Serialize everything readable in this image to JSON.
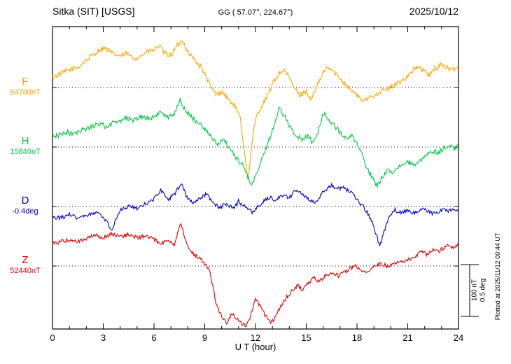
{
  "chart_data": {
    "type": "line",
    "title": "Sitka (SIT)  [USGS]",
    "subtitle": "GG ( 57.07°, 224.67°)",
    "date": "2025/10/12",
    "plotted_at": "Plotted at 2025/11/12 00:44 UT",
    "xlabel": "U T (hour)",
    "x_range": [
      0,
      24
    ],
    "x_ticks": [
      0,
      3,
      6,
      9,
      12,
      15,
      18,
      21,
      24
    ],
    "x_minor_tick_every": 1,
    "grid": "dotted horizontal baseline per series",
    "legend_position": "left margin",
    "scale_bar": {
      "nT_label": "100 nT",
      "deg_label": "0.5 deg",
      "nT_per_division": 100,
      "deg_per_division": 0.5
    },
    "series": [
      {
        "name": "F",
        "baseline_label": "54780nT",
        "baseline_value": 54780,
        "units": "nT",
        "color": "#FFA500",
        "noise_amplitude": 5,
        "points": [
          [
            0,
            20
          ],
          [
            0.5,
            27
          ],
          [
            1,
            34
          ],
          [
            1.5,
            39
          ],
          [
            2,
            53
          ],
          [
            2.5,
            66
          ],
          [
            3,
            77
          ],
          [
            3.3,
            72
          ],
          [
            3.6,
            64
          ],
          [
            4,
            61
          ],
          [
            4.4,
            66
          ],
          [
            4.8,
            55
          ],
          [
            5.2,
            61
          ],
          [
            5.6,
            69
          ],
          [
            6,
            72
          ],
          [
            6.3,
            81
          ],
          [
            6.6,
            66
          ],
          [
            7,
            62
          ],
          [
            7.4,
            82
          ],
          [
            7.7,
            91
          ],
          [
            8,
            69
          ],
          [
            8.4,
            53
          ],
          [
            8.8,
            39
          ],
          [
            9.1,
            18
          ],
          [
            9.4,
            -1
          ],
          [
            9.7,
            -15
          ],
          [
            10,
            -7
          ],
          [
            10.4,
            -23
          ],
          [
            10.8,
            -36
          ],
          [
            11.1,
            -61
          ],
          [
            11.4,
            -135
          ],
          [
            11.55,
            -180
          ],
          [
            11.7,
            -135
          ],
          [
            11.9,
            -81
          ],
          [
            12.1,
            -50
          ],
          [
            12.4,
            -34
          ],
          [
            12.7,
            -18
          ],
          [
            13,
            7
          ],
          [
            13.4,
            28
          ],
          [
            13.7,
            34
          ],
          [
            14,
            18
          ],
          [
            14.3,
            -1
          ],
          [
            14.6,
            -15
          ],
          [
            15,
            -7
          ],
          [
            15.3,
            -23
          ],
          [
            15.6,
            -1
          ],
          [
            16,
            28
          ],
          [
            16.3,
            39
          ],
          [
            16.6,
            31
          ],
          [
            17,
            18
          ],
          [
            17.4,
            4
          ],
          [
            17.8,
            -9
          ],
          [
            18.1,
            -18
          ],
          [
            18.4,
            -28
          ],
          [
            18.7,
            -20
          ],
          [
            19,
            -15
          ],
          [
            19.4,
            -7
          ],
          [
            19.8,
            -4
          ],
          [
            20.2,
            4
          ],
          [
            20.6,
            12
          ],
          [
            21,
            23
          ],
          [
            21.3,
            34
          ],
          [
            21.6,
            39
          ],
          [
            22,
            31
          ],
          [
            22.3,
            24
          ],
          [
            22.6,
            36
          ],
          [
            23,
            45
          ],
          [
            23.3,
            39
          ],
          [
            23.6,
            32
          ],
          [
            24,
            41
          ]
        ]
      },
      {
        "name": "H",
        "baseline_label": "15840nT",
        "baseline_value": 15840,
        "units": "nT",
        "color": "#00C840",
        "noise_amplitude": 5,
        "points": [
          [
            0,
            19
          ],
          [
            0.4,
            23
          ],
          [
            0.8,
            30
          ],
          [
            1.2,
            24
          ],
          [
            1.6,
            32
          ],
          [
            2,
            35
          ],
          [
            2.4,
            41
          ],
          [
            2.8,
            45
          ],
          [
            3.2,
            39
          ],
          [
            3.6,
            47
          ],
          [
            4,
            51
          ],
          [
            4.4,
            57
          ],
          [
            4.8,
            50
          ],
          [
            5.2,
            59
          ],
          [
            5.6,
            54
          ],
          [
            6,
            58
          ],
          [
            6.4,
            68
          ],
          [
            6.8,
            57
          ],
          [
            7.2,
            65
          ],
          [
            7.55,
            92
          ],
          [
            7.8,
            73
          ],
          [
            8.1,
            62
          ],
          [
            8.5,
            49
          ],
          [
            8.9,
            39
          ],
          [
            9.2,
            27
          ],
          [
            9.5,
            14
          ],
          [
            9.8,
            5
          ],
          [
            10.1,
            16
          ],
          [
            10.5,
            -5
          ],
          [
            10.9,
            -22
          ],
          [
            11.2,
            -35
          ],
          [
            11.5,
            -54
          ],
          [
            11.75,
            -72
          ],
          [
            12,
            -57
          ],
          [
            12.3,
            -30
          ],
          [
            12.6,
            -3
          ],
          [
            13,
            32
          ],
          [
            13.4,
            73
          ],
          [
            13.7,
            62
          ],
          [
            14,
            41
          ],
          [
            14.4,
            22
          ],
          [
            14.8,
            14
          ],
          [
            15.1,
            22
          ],
          [
            15.4,
            7
          ],
          [
            15.7,
            30
          ],
          [
            16,
            66
          ],
          [
            16.3,
            54
          ],
          [
            16.7,
            41
          ],
          [
            17,
            27
          ],
          [
            17.4,
            14
          ],
          [
            17.7,
            22
          ],
          [
            18,
            5
          ],
          [
            18.3,
            -14
          ],
          [
            18.6,
            -41
          ],
          [
            18.9,
            -59
          ],
          [
            19.2,
            -76
          ],
          [
            19.5,
            -57
          ],
          [
            19.8,
            -43
          ],
          [
            20.2,
            -49
          ],
          [
            20.6,
            -35
          ],
          [
            21,
            -28
          ],
          [
            21.4,
            -38
          ],
          [
            21.8,
            -24
          ],
          [
            22.1,
            -15
          ],
          [
            22.5,
            -7
          ],
          [
            22.8,
            -12
          ],
          [
            23.1,
            -3
          ],
          [
            23.5,
            3
          ],
          [
            23.8,
            -4
          ],
          [
            24,
            7
          ]
        ]
      },
      {
        "name": "D",
        "baseline_label": "-0.4deg",
        "baseline_value": -0.4,
        "units": "deg",
        "color": "#0000CC",
        "noise_amplitude": 0.02,
        "points": [
          [
            0,
            -0.1
          ],
          [
            0.5,
            -0.11
          ],
          [
            1,
            -0.08
          ],
          [
            1.5,
            -0.11
          ],
          [
            2,
            -0.09
          ],
          [
            2.5,
            -0.06
          ],
          [
            3,
            -0.09
          ],
          [
            3.3,
            -0.18
          ],
          [
            3.5,
            -0.24
          ],
          [
            3.7,
            -0.14
          ],
          [
            4,
            -0.04
          ],
          [
            4.5,
            0.0
          ],
          [
            5,
            -0.02
          ],
          [
            5.5,
            0.03
          ],
          [
            6,
            0.07
          ],
          [
            6.4,
            0.16
          ],
          [
            6.8,
            0.07
          ],
          [
            7.2,
            0.11
          ],
          [
            7.6,
            0.22
          ],
          [
            8,
            0.07
          ],
          [
            8.4,
            0.03
          ],
          [
            8.8,
            0.09
          ],
          [
            9.1,
            0.12
          ],
          [
            9.5,
            0.03
          ],
          [
            9.9,
            -0.01
          ],
          [
            10.3,
            0.03
          ],
          [
            10.7,
            -0.02
          ],
          [
            11,
            0.05
          ],
          [
            11.4,
            0.0
          ],
          [
            11.8,
            -0.05
          ],
          [
            12.1,
            -0.01
          ],
          [
            12.5,
            0.05
          ],
          [
            12.9,
            0.09
          ],
          [
            13.2,
            0.06
          ],
          [
            13.6,
            0.11
          ],
          [
            14,
            0.09
          ],
          [
            14.4,
            0.16
          ],
          [
            14.8,
            0.11
          ],
          [
            15.1,
            0.08
          ],
          [
            15.5,
            0.04
          ],
          [
            15.8,
            0.1
          ],
          [
            16.1,
            0.16
          ],
          [
            16.5,
            0.2
          ],
          [
            16.9,
            0.17
          ],
          [
            17.2,
            0.18
          ],
          [
            17.6,
            0.14
          ],
          [
            18,
            0.07
          ],
          [
            18.4,
            -0.01
          ],
          [
            18.8,
            -0.11
          ],
          [
            19.1,
            -0.25
          ],
          [
            19.35,
            -0.39
          ],
          [
            19.6,
            -0.24
          ],
          [
            19.9,
            -0.1
          ],
          [
            20.2,
            -0.03
          ],
          [
            20.6,
            -0.06
          ],
          [
            21,
            -0.03
          ],
          [
            21.4,
            -0.07
          ],
          [
            21.8,
            -0.02
          ],
          [
            22.2,
            -0.05
          ],
          [
            22.6,
            -0.07
          ],
          [
            23,
            -0.03
          ],
          [
            23.4,
            -0.05
          ],
          [
            23.7,
            -0.02
          ],
          [
            24,
            -0.04
          ]
        ]
      },
      {
        "name": "Z",
        "baseline_label": "52440nT",
        "baseline_value": 52440,
        "units": "nT",
        "color": "#DD0000",
        "noise_amplitude": 4,
        "points": [
          [
            0,
            43
          ],
          [
            0.5,
            47
          ],
          [
            1,
            51
          ],
          [
            1.5,
            46
          ],
          [
            2,
            54
          ],
          [
            2.5,
            59
          ],
          [
            3,
            55
          ],
          [
            3.5,
            62
          ],
          [
            4,
            57
          ],
          [
            4.5,
            61
          ],
          [
            5,
            54
          ],
          [
            5.5,
            58
          ],
          [
            6,
            51
          ],
          [
            6.4,
            43
          ],
          [
            6.8,
            49
          ],
          [
            7.2,
            41
          ],
          [
            7.6,
            84
          ],
          [
            7.85,
            51
          ],
          [
            8.1,
            32
          ],
          [
            8.5,
            19
          ],
          [
            8.9,
            9
          ],
          [
            9.1,
            1
          ],
          [
            9.3,
            -14
          ],
          [
            9.5,
            -43
          ],
          [
            9.7,
            -78
          ],
          [
            9.9,
            -92
          ],
          [
            10.1,
            -101
          ],
          [
            10.35,
            -111
          ],
          [
            10.6,
            -92
          ],
          [
            10.9,
            -103
          ],
          [
            11.2,
            -111
          ],
          [
            11.45,
            -116
          ],
          [
            11.7,
            -97
          ],
          [
            12,
            -62
          ],
          [
            12.3,
            -78
          ],
          [
            12.6,
            -97
          ],
          [
            12.9,
            -111
          ],
          [
            13.2,
            -97
          ],
          [
            13.5,
            -76
          ],
          [
            13.8,
            -62
          ],
          [
            14.1,
            -51
          ],
          [
            14.5,
            -38
          ],
          [
            14.8,
            -47
          ],
          [
            15.1,
            -32
          ],
          [
            15.5,
            -23
          ],
          [
            15.8,
            -30
          ],
          [
            16.1,
            -19
          ],
          [
            16.5,
            -14
          ],
          [
            16.9,
            -19
          ],
          [
            17.2,
            -12
          ],
          [
            17.6,
            -5
          ],
          [
            17.9,
            1
          ],
          [
            18.2,
            -7
          ],
          [
            18.6,
            -11
          ],
          [
            19,
            -1
          ],
          [
            19.4,
            5
          ],
          [
            19.8,
            0
          ],
          [
            20.2,
            4
          ],
          [
            20.6,
            8
          ],
          [
            21,
            12
          ],
          [
            21.4,
            19
          ],
          [
            21.8,
            27
          ],
          [
            22.1,
            23
          ],
          [
            22.5,
            32
          ],
          [
            22.8,
            27
          ],
          [
            23.1,
            35
          ],
          [
            23.5,
            41
          ],
          [
            23.7,
            35
          ],
          [
            24,
            41
          ]
        ]
      }
    ]
  }
}
